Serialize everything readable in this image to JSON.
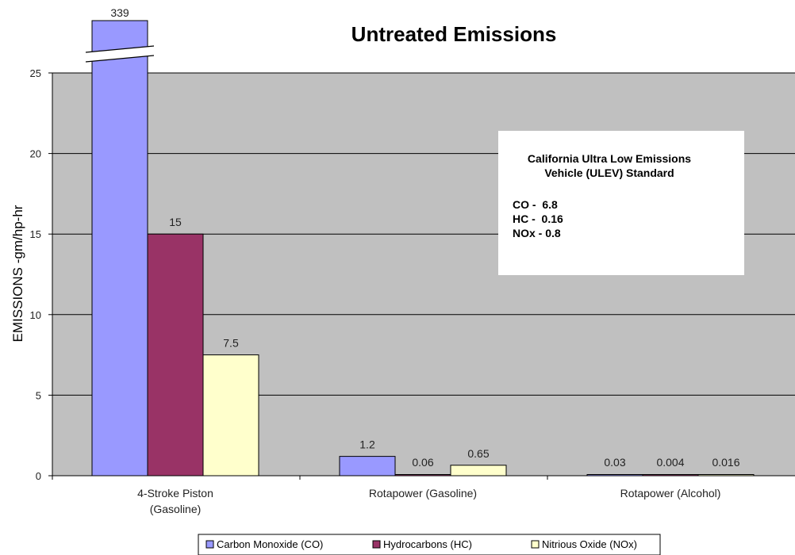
{
  "chart_data": {
    "type": "bar",
    "title": "Untreated Emissions",
    "xlabel": "",
    "ylabel": "EMISSIONS -gm/hp-hr",
    "ylim": [
      0,
      25
    ],
    "yticks": [
      0,
      5,
      10,
      15,
      20,
      25
    ],
    "grid": true,
    "categories": [
      [
        "4-Stroke Piston",
        "(Gasoline)"
      ],
      [
        "Rotapower (Gasoline)"
      ],
      [
        "Rotapower (Alcohol)"
      ]
    ],
    "series": [
      {
        "name": "Carbon Monoxide (CO)",
        "color": "#9999ff",
        "values": [
          339,
          1.2,
          0.03
        ],
        "labels": [
          "339",
          "1.2",
          "0.03"
        ]
      },
      {
        "name": "Hydrocarbons (HC)",
        "color": "#993366",
        "values": [
          15,
          0.06,
          0.004
        ],
        "labels": [
          "15",
          "0.06",
          "0.004"
        ]
      },
      {
        "name": "Nitrious Oxide (NOx)",
        "color": "#ffffcc",
        "values": [
          7.5,
          0.65,
          0.016
        ],
        "labels": [
          "7.5",
          "0.65",
          "0.016"
        ]
      }
    ],
    "axis_break": {
      "category": 0,
      "series": 0
    },
    "legend_position": "bottom",
    "annotation": {
      "title_lines": [
        "California Ultra Low Emissions",
        "Vehicle (ULEV) Standard"
      ],
      "lines": [
        "CO -  6.8",
        "HC -  0.16",
        "NOx - 0.8"
      ]
    },
    "colors": {
      "plot_background": "#c0c0c0",
      "gridline": "#000000",
      "bar_outline": "#000000"
    }
  }
}
